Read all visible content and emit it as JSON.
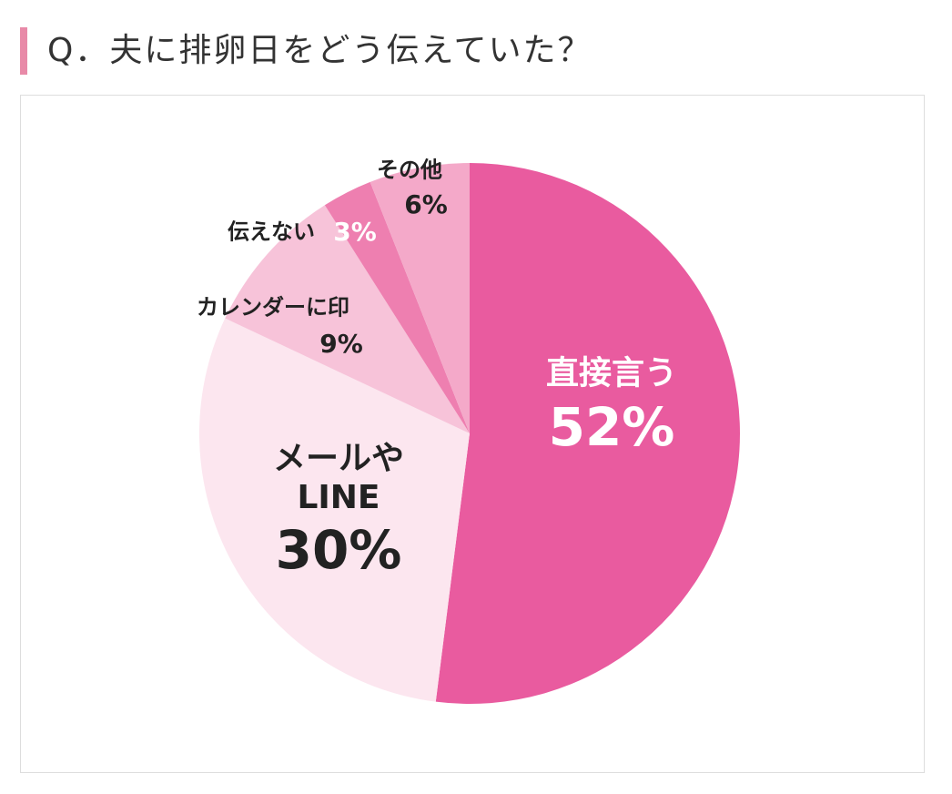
{
  "chart_data": {
    "type": "pie",
    "title": "Q．夫に排卵日をどう伝えていた？",
    "categories": [
      "直接言う",
      "メールや\nLINE",
      "カレンダーに印",
      "伝えない",
      "その他"
    ],
    "values": [
      52,
      30,
      9,
      3,
      6
    ],
    "value_labels": [
      "52%",
      "30%",
      "9%",
      "3%",
      "6%"
    ],
    "colors": [
      "#e95b9f",
      "#fce6ef",
      "#f7c3d9",
      "#ee7fb0",
      "#f4a9c9"
    ]
  }
}
